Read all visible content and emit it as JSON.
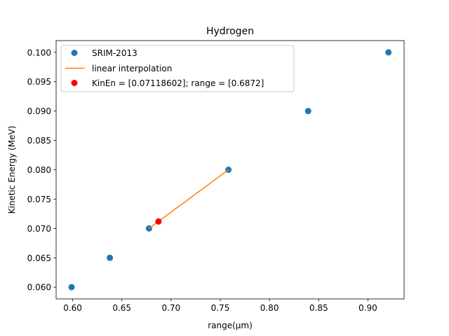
{
  "chart_data": {
    "type": "scatter",
    "title": "Hydrogen",
    "xlabel": "range(μm)",
    "ylabel": "Kinetic Energy (MeV)",
    "xlim": [
      0.5832,
      0.9368
    ],
    "ylim": [
      0.058,
      0.102
    ],
    "xticks": [
      0.6,
      0.65,
      0.7,
      0.75,
      0.8,
      0.85,
      0.9
    ],
    "xtick_labels": [
      "0.60",
      "0.65",
      "0.70",
      "0.75",
      "0.80",
      "0.85",
      "0.90"
    ],
    "yticks": [
      0.06,
      0.065,
      0.07,
      0.075,
      0.08,
      0.085,
      0.09,
      0.095,
      0.1
    ],
    "ytick_labels": [
      "0.060",
      "0.065",
      "0.070",
      "0.075",
      "0.080",
      "0.085",
      "0.090",
      "0.095",
      "0.100"
    ],
    "grid": false,
    "legend_position": "top-left",
    "series": [
      {
        "name": "SRIM-2013",
        "kind": "scatter",
        "color": "#1f77b4",
        "x": [
          0.5989,
          0.6378,
          0.6776,
          0.7583,
          0.8393,
          0.9209
        ],
        "y": [
          0.06,
          0.065,
          0.07,
          0.08,
          0.09,
          0.1
        ]
      },
      {
        "name": "linear interpolation",
        "kind": "line",
        "color": "#ff7f0e",
        "x": [
          0.6776,
          0.7583
        ],
        "y": [
          0.07,
          0.08
        ]
      },
      {
        "name": "KinEn = [0.07118602]; range = [0.6872]",
        "kind": "scatter",
        "color": "#ff0000",
        "x": [
          0.6872
        ],
        "y": [
          0.07118602
        ]
      }
    ]
  }
}
